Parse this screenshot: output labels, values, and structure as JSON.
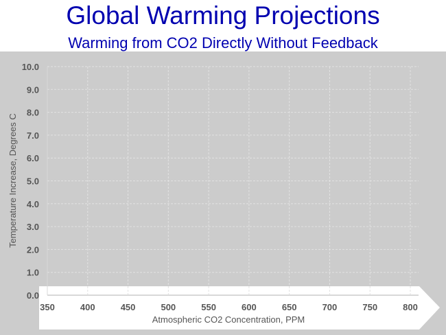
{
  "chart_data": {
    "type": "line",
    "title": "Global Warming Projections",
    "subtitle": "Warming from CO2 Directly Without Feedback",
    "xlabel": "Atmospheric CO2 Concentration, PPM",
    "ylabel": "Temperature  Increase, Degrees C",
    "xlim": [
      350,
      800
    ],
    "ylim": [
      0,
      10
    ],
    "x_ticks": [
      "350",
      "400",
      "450",
      "500",
      "550",
      "600",
      "650",
      "700",
      "750",
      "800"
    ],
    "y_ticks": [
      "0.0",
      "1.0",
      "2.0",
      "3.0",
      "4.0",
      "5.0",
      "6.0",
      "7.0",
      "8.0",
      "9.0",
      "10.0"
    ],
    "grid": true,
    "series": []
  },
  "colors": {
    "title": "#0000b0",
    "background": "#cccccc",
    "grid": "#e2e2e2"
  }
}
